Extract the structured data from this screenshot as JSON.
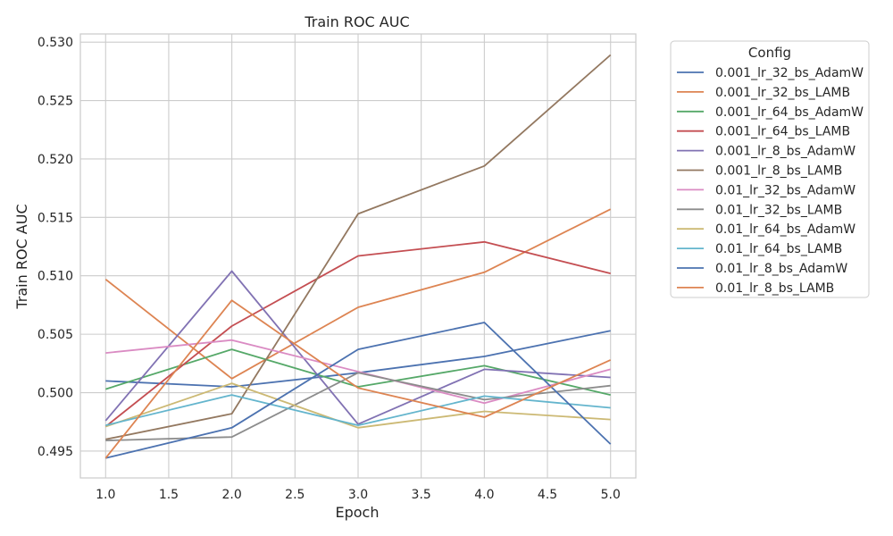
{
  "chart_data": {
    "type": "line",
    "title": "Train ROC AUC",
    "xlabel": "Epoch",
    "ylabel": "Train ROC AUC",
    "x": [
      1,
      2,
      3,
      4,
      5
    ],
    "xlim": [
      0.8,
      5.2
    ],
    "ylim": [
      0.4927,
      0.5307
    ],
    "xticks": [
      "1.0",
      "1.5",
      "2.0",
      "2.5",
      "3.0",
      "3.5",
      "4.0",
      "4.5",
      "5.0"
    ],
    "yticks": [
      "0.495",
      "0.500",
      "0.505",
      "0.510",
      "0.515",
      "0.520",
      "0.525",
      "0.530"
    ],
    "grid": true,
    "legend_title": "Config",
    "legend_position": "outside-right",
    "series": [
      {
        "name": "0.001_lr_32_bs_AdamW",
        "color": "#4c72b0",
        "values": [
          0.501,
          0.5005,
          0.5017,
          0.5031,
          0.5053
        ]
      },
      {
        "name": "0.001_lr_32_bs_LAMB",
        "color": "#dd8452",
        "values": [
          0.5097,
          0.5012,
          0.5073,
          0.5103,
          0.5157
        ]
      },
      {
        "name": "0.001_lr_64_bs_AdamW",
        "color": "#55a868",
        "values": [
          0.5003,
          0.5037,
          0.5005,
          0.5023,
          0.4998
        ]
      },
      {
        "name": "0.001_lr_64_bs_LAMB",
        "color": "#c44e52",
        "values": [
          0.4971,
          0.5057,
          0.5117,
          0.5129,
          0.5102
        ]
      },
      {
        "name": "0.001_lr_8_bs_AdamW",
        "color": "#8172b3",
        "values": [
          0.4976,
          0.5104,
          0.4973,
          0.502,
          0.5013
        ]
      },
      {
        "name": "0.001_lr_8_bs_LAMB",
        "color": "#937860",
        "values": [
          0.496,
          0.4982,
          0.5153,
          0.5194,
          0.5289
        ]
      },
      {
        "name": "0.01_lr_32_bs_AdamW",
        "color": "#da8bc3",
        "values": [
          0.5034,
          0.5045,
          0.5018,
          0.4991,
          0.502
        ]
      },
      {
        "name": "0.01_lr_32_bs_LAMB",
        "color": "#8c8c8c",
        "values": [
          0.4959,
          0.4962,
          0.5017,
          0.4994,
          0.5006
        ]
      },
      {
        "name": "0.01_lr_64_bs_AdamW",
        "color": "#ccb974",
        "values": [
          0.4971,
          0.5008,
          0.497,
          0.4984,
          0.4977
        ]
      },
      {
        "name": "0.01_lr_64_bs_LAMB",
        "color": "#64b5cd",
        "values": [
          0.4972,
          0.4998,
          0.4972,
          0.4997,
          0.4987
        ]
      },
      {
        "name": "0.01_lr_8_bs_AdamW",
        "color": "#4c72b0",
        "values": [
          0.4944,
          0.497,
          0.5037,
          0.506,
          0.4956
        ]
      },
      {
        "name": "0.01_lr_8_bs_LAMB",
        "color": "#dd8452",
        "values": [
          0.4944,
          0.5079,
          0.5004,
          0.4979,
          0.5028
        ]
      }
    ]
  }
}
